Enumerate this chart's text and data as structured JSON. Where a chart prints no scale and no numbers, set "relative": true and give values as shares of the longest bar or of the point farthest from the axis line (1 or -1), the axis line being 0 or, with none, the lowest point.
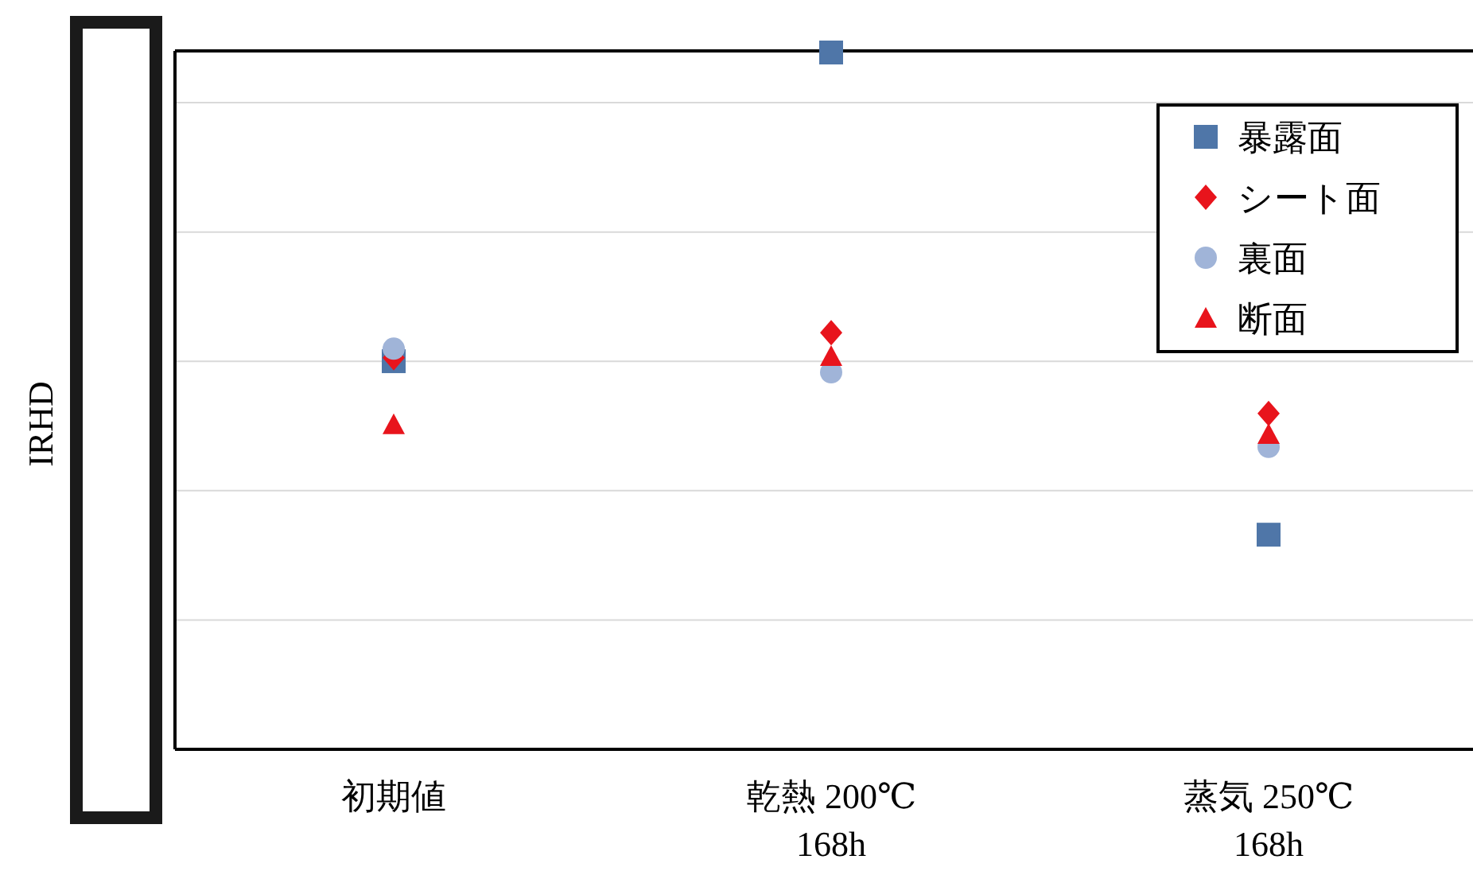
{
  "chart_data": {
    "type": "scatter",
    "ylabel": "IRHD",
    "relative": true,
    "grid": "y",
    "legend": "top right",
    "categories": [
      "初期値",
      "乾熱 200℃\n168h",
      "蒸気 250℃\n168h"
    ],
    "series": [
      {
        "name": "暴露面",
        "color": "#4f76a8",
        "marker": "square",
        "values": [
          0.557,
          1,
          0.308
        ]
      },
      {
        "name": "シート面",
        "color": "#e8141c",
        "marker": "diamond",
        "values": [
          0.562,
          0.598,
          0.482
        ]
      },
      {
        "name": "裏面",
        "color": "#a0b4d8",
        "marker": "circle",
        "values": [
          0.575,
          0.541,
          0.434
        ]
      },
      {
        "name": "断面",
        "color": "#e8141c",
        "marker": "triangle",
        "values": [
          0.466,
          0.564,
          0.452
        ]
      }
    ]
  }
}
